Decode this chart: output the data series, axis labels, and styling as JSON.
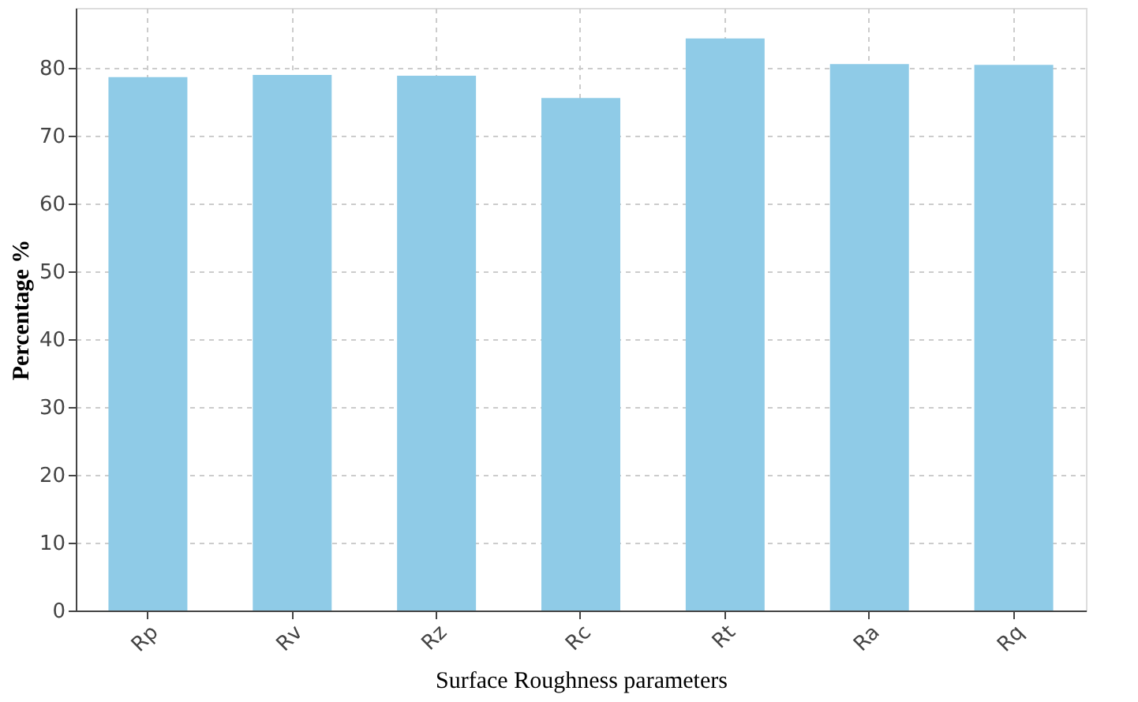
{
  "chart_data": {
    "type": "bar",
    "xlabel": "Surface Roughness parameters",
    "ylabel": "Percentage %",
    "categories": [
      "Rp",
      "Rv",
      "Rz",
      "Rc",
      "Rt",
      "Ra",
      "Rq"
    ],
    "values": [
      78.7,
      79.0,
      78.9,
      75.6,
      84.4,
      80.6,
      80.5
    ],
    "color": "#8fcbe7",
    "ylim": [
      0,
      88.9
    ],
    "yticks": [
      0,
      10,
      20,
      30,
      40,
      50,
      60,
      70,
      80
    ],
    "grid": true
  }
}
